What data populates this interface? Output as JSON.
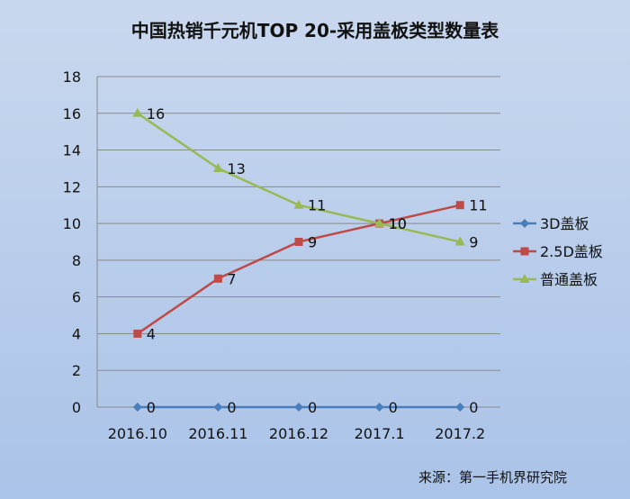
{
  "chart_data": {
    "type": "line",
    "title": "中国热销千元机TOP 20-采用盖板类型数量表",
    "categories": [
      "2016.10",
      "2016.11",
      "2016.12",
      "2017.1",
      "2017.2"
    ],
    "ylim": [
      0,
      18
    ],
    "yticks": [
      0,
      2,
      4,
      6,
      8,
      10,
      12,
      14,
      16,
      18
    ],
    "grid": true,
    "legend_placement": "right",
    "series": [
      {
        "name": "3D盖板",
        "values": [
          0,
          0,
          0,
          0,
          0
        ],
        "color": "#4a7ebb",
        "marker": "diamond"
      },
      {
        "name": "2.5D盖板",
        "values": [
          4,
          7,
          9,
          10,
          11
        ],
        "color": "#be4b48",
        "marker": "square"
      },
      {
        "name": "普通盖板",
        "values": [
          16,
          13,
          11,
          10,
          9
        ],
        "color": "#98b954",
        "marker": "triangle"
      }
    ]
  },
  "source": "来源：第一手机界研究院"
}
